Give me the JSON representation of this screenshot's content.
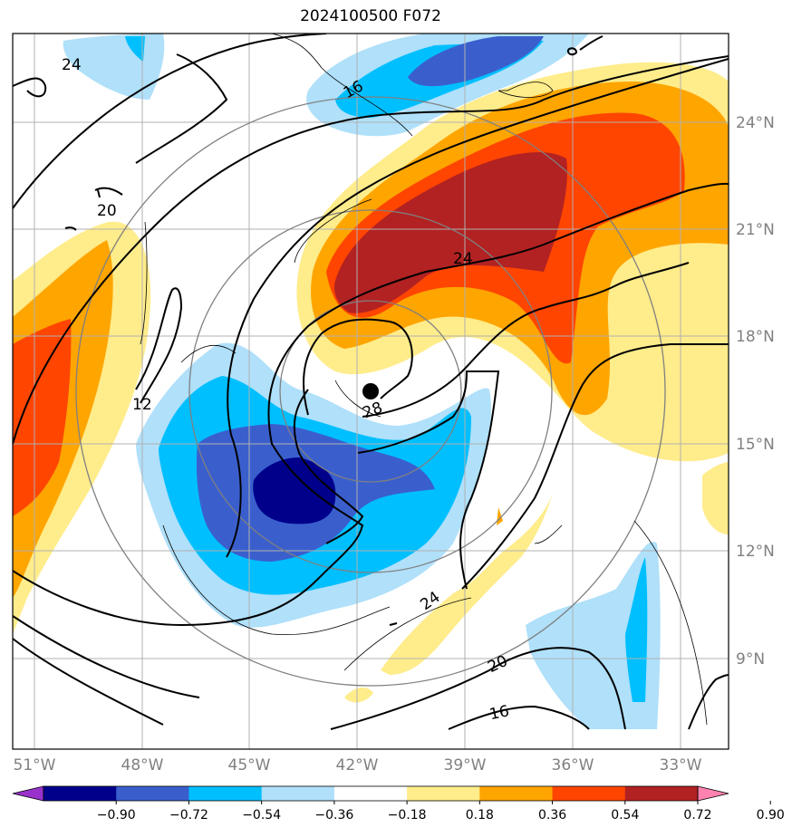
{
  "title": "2024100500 F072",
  "lat_ticks": [
    "24°N",
    "21°N",
    "18°N",
    "15°N",
    "12°N",
    "9°N"
  ],
  "lon_ticks": [
    "51°W",
    "48°W",
    "45°W",
    "42°W",
    "39°W",
    "36°W",
    "33°W"
  ],
  "contour_labels": [
    "24",
    "16",
    "20",
    "12",
    "24",
    "28",
    "24",
    "20",
    "16"
  ],
  "colorbar": {
    "ticks": [
      "−0.90",
      "−0.72",
      "−0.54",
      "−0.36",
      "−0.18",
      "0.18",
      "0.36",
      "0.54",
      "0.72",
      "0.90"
    ],
    "colors": [
      "#9932cc",
      "#00008b",
      "#3a5fcd",
      "#00bfff",
      "#b0e0fa",
      "#ffffff",
      "#ffec8b",
      "#ffa500",
      "#ff4500",
      "#b22222",
      "#ff83b0"
    ]
  },
  "center_marker": {
    "lon": "41.6°W",
    "lat": "16.3°N"
  }
}
